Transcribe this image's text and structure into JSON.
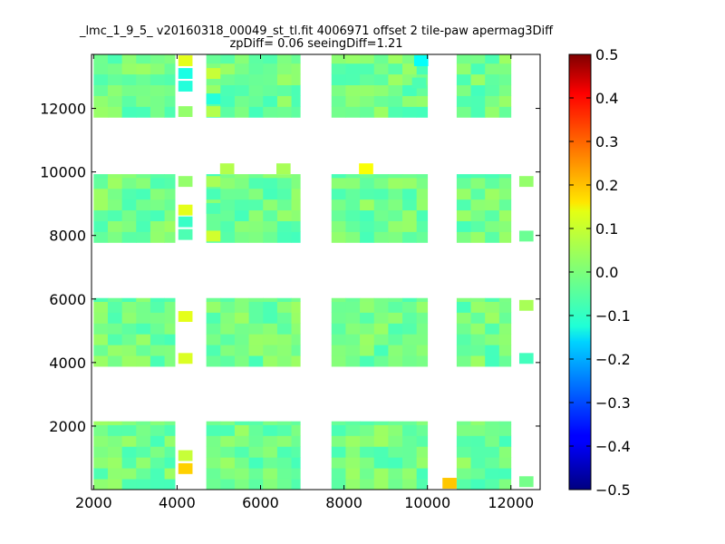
{
  "chart_data": {
    "type": "heatmap",
    "title": "_lmc_1_9_5_ v20160318_00049_st_tl.fit 4006971 offset 2 tile-paw apermag3Diff",
    "subtitle": "zpDiff= 0.06 seeingDiff=1.21",
    "xlabel": "",
    "ylabel": "",
    "xlim": [
      1950,
      12700
    ],
    "ylim": [
      0,
      13700
    ],
    "x_ticks": [
      "2000",
      "4000",
      "6000",
      "8000",
      "10000",
      "12000"
    ],
    "y_ticks": [
      "2000",
      "4000",
      "6000",
      "8000",
      "10000",
      "12000"
    ],
    "colorbar": {
      "colormap": "jet",
      "vmin": -0.5,
      "vmax": 0.5,
      "ticks": [
        "0.5",
        "0.4",
        "0.3",
        "0.2",
        "0.1",
        "0.0",
        "−0.1",
        "−0.2",
        "−0.3",
        "−0.4",
        "−0.5"
      ]
    },
    "cell_size": 340,
    "columns": [
      {
        "x0": 2000,
        "x1": 3950
      },
      {
        "x0": 4700,
        "x1": 6950
      },
      {
        "x0": 7700,
        "x1": 10000
      },
      {
        "x0": 10700,
        "x1": 12000
      }
    ],
    "row_bands": [
      {
        "y0": 0,
        "y1": 2150
      },
      {
        "y0": 3880,
        "y1": 6030
      },
      {
        "y0": 7780,
        "y1": 9930
      },
      {
        "y0": 11720,
        "y1": 13700
      }
    ],
    "base_value": -0.015,
    "special_cells": [
      {
        "x": 4200,
        "y": 660,
        "value": 0.17
      },
      {
        "x": 4200,
        "y": 1070,
        "value": 0.07
      },
      {
        "x": 10530,
        "y": 200,
        "value": 0.18
      },
      {
        "x": 12370,
        "y": 250,
        "value": -0.01
      },
      {
        "x": 4200,
        "y": 4130,
        "value": 0.09
      },
      {
        "x": 4200,
        "y": 5450,
        "value": 0.1
      },
      {
        "x": 12370,
        "y": 4130,
        "value": -0.06
      },
      {
        "x": 12370,
        "y": 5800,
        "value": 0.04
      },
      {
        "x": 4200,
        "y": 8030,
        "value": -0.05
      },
      {
        "x": 4200,
        "y": 8430,
        "value": -0.07
      },
      {
        "x": 4200,
        "y": 8800,
        "value": 0.1
      },
      {
        "x": 4200,
        "y": 9700,
        "value": 0.02
      },
      {
        "x": 4870,
        "y": 7980,
        "value": 0.08
      },
      {
        "x": 4870,
        "y": 8850,
        "value": -0.05
      },
      {
        "x": 4870,
        "y": 9700,
        "value": 0.04
      },
      {
        "x": 5200,
        "y": 10100,
        "value": 0.05
      },
      {
        "x": 6550,
        "y": 10100,
        "value": 0.04
      },
      {
        "x": 8530,
        "y": 10100,
        "value": 0.12
      },
      {
        "x": 12370,
        "y": 7980,
        "value": -0.02
      },
      {
        "x": 12370,
        "y": 9700,
        "value": 0.02
      },
      {
        "x": 4200,
        "y": 13500,
        "value": 0.1
      },
      {
        "x": 4200,
        "y": 13100,
        "value": -0.1
      },
      {
        "x": 4200,
        "y": 12700,
        "value": -0.09
      },
      {
        "x": 4200,
        "y": 11900,
        "value": 0.02
      },
      {
        "x": 4870,
        "y": 13100,
        "value": 0.07
      },
      {
        "x": 4870,
        "y": 12300,
        "value": -0.09
      },
      {
        "x": 4870,
        "y": 11900,
        "value": 0.05
      },
      {
        "x": 9850,
        "y": 13500,
        "value": -0.12
      },
      {
        "x": 9800,
        "y": 12800,
        "value": -0.05
      }
    ]
  }
}
